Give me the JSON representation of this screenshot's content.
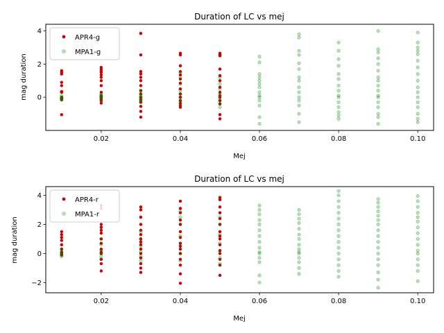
{
  "chart_data": [
    {
      "type": "scatter",
      "title": "Duration of LC vs mej",
      "xlabel": "Mej",
      "ylabel": "mag duration",
      "xlim": [
        0.006,
        0.104
      ],
      "ylim": [
        -2.0,
        4.4
      ],
      "xticks": [
        "0.02",
        "0.04",
        "0.06",
        "0.08",
        "0.10"
      ],
      "xtick_values": [
        0.02,
        0.04,
        0.06,
        0.08,
        0.1
      ],
      "yticks": [
        "0",
        "2",
        "4"
      ],
      "ytick_values": [
        0,
        2,
        4
      ],
      "legend_position": "top-left",
      "series": [
        {
          "name": "APR4-g",
          "color": "#cc0000",
          "x": [
            0.01,
            0.01,
            0.01,
            0.01,
            0.01,
            0.01,
            0.01,
            0.01,
            0.01,
            0.01,
            0.01,
            0.01,
            0.02,
            0.02,
            0.02,
            0.02,
            0.02,
            0.02,
            0.02,
            0.02,
            0.02,
            0.02,
            0.02,
            0.02,
            0.02,
            0.02,
            0.03,
            0.03,
            0.03,
            0.03,
            0.03,
            0.03,
            0.03,
            0.03,
            0.03,
            0.03,
            0.03,
            0.03,
            0.03,
            0.03,
            0.03,
            0.04,
            0.04,
            0.04,
            0.04,
            0.04,
            0.04,
            0.04,
            0.04,
            0.04,
            0.04,
            0.04,
            0.04,
            0.04,
            0.04,
            0.05,
            0.05,
            0.05,
            0.05,
            0.05,
            0.05,
            0.05,
            0.05,
            0.05,
            0.05,
            0.05,
            0.05,
            0.05,
            0.05
          ],
          "y": [
            1.6,
            1.5,
            1.4,
            0.9,
            0.7,
            0.35,
            0.3,
            0.0,
            -0.05,
            -0.1,
            -0.15,
            -1.05,
            1.8,
            1.7,
            1.6,
            1.5,
            1.35,
            1.2,
            1.0,
            0.7,
            0.3,
            0.1,
            0.0,
            -0.1,
            -0.2,
            -0.35,
            3.85,
            2.55,
            1.55,
            1.4,
            1.2,
            1.0,
            0.7,
            0.4,
            0.2,
            0.0,
            -0.15,
            -0.3,
            -0.55,
            -0.85,
            -1.2,
            2.65,
            2.55,
            1.9,
            1.55,
            1.35,
            1.1,
            0.85,
            0.5,
            0.2,
            0.0,
            -0.2,
            -0.35,
            -0.5,
            -0.6,
            2.65,
            2.55,
            2.5,
            1.7,
            1.3,
            1.0,
            0.6,
            0.3,
            0.1,
            0.0,
            -0.2,
            -0.4,
            -1.05,
            -1.3
          ]
        },
        {
          "name": "MPA1-g",
          "color": "#008000",
          "x": [
            0.01,
            0.01,
            0.01,
            0.01,
            0.01,
            0.02,
            0.02,
            0.02,
            0.02,
            0.02,
            0.02,
            0.03,
            0.03,
            0.03,
            0.03,
            0.03,
            0.03,
            0.03,
            0.04,
            0.04,
            0.04,
            0.04,
            0.04,
            0.04,
            0.04,
            0.04,
            0.05,
            0.05,
            0.05,
            0.05,
            0.05,
            0.05,
            0.05,
            0.05,
            0.06,
            0.06,
            0.06,
            0.06,
            0.06,
            0.06,
            0.06,
            0.06,
            0.06,
            0.06,
            0.06,
            0.06,
            0.06,
            0.06,
            0.07,
            0.07,
            0.07,
            0.07,
            0.07,
            0.07,
            0.07,
            0.07,
            0.07,
            0.07,
            0.07,
            0.07,
            0.07,
            0.07,
            0.07,
            0.08,
            0.08,
            0.08,
            0.08,
            0.08,
            0.08,
            0.08,
            0.08,
            0.08,
            0.08,
            0.08,
            0.08,
            0.08,
            0.08,
            0.08,
            0.09,
            0.09,
            0.09,
            0.09,
            0.09,
            0.09,
            0.09,
            0.09,
            0.09,
            0.09,
            0.09,
            0.09,
            0.09,
            0.09,
            0.09,
            0.09,
            0.09,
            0.1,
            0.1,
            0.1,
            0.1,
            0.1,
            0.1,
            0.1,
            0.1,
            0.1,
            0.1,
            0.1,
            0.1,
            0.1,
            0.1,
            0.1,
            0.1,
            0.1
          ],
          "y": [
            0.1,
            0.0,
            -0.05,
            -0.1,
            -0.15,
            0.2,
            0.1,
            0.0,
            -0.1,
            -0.2,
            0.05,
            0.4,
            0.2,
            0.1,
            0.0,
            -0.1,
            -0.2,
            -0.3,
            1.5,
            1.2,
            0.8,
            0.4,
            0.2,
            0.0,
            -0.2,
            -0.4,
            1.2,
            0.8,
            0.5,
            0.2,
            0.0,
            -0.2,
            -0.4,
            -0.6,
            2.45,
            2.1,
            1.4,
            1.2,
            1.0,
            0.8,
            0.6,
            0.3,
            0.1,
            0.0,
            -0.2,
            -0.5,
            -1.2,
            -1.6,
            3.8,
            3.6,
            2.8,
            2.55,
            2.05,
            1.7,
            1.2,
            1.0,
            0.6,
            0.3,
            0.0,
            -0.2,
            -0.5,
            -1.0,
            -1.5,
            3.3,
            2.8,
            2.3,
            1.9,
            1.4,
            1.1,
            0.7,
            0.4,
            0.1,
            0.0,
            -0.3,
            -0.6,
            -1.1,
            -1.3,
            -0.9,
            4.0,
            2.9,
            2.7,
            2.35,
            2.0,
            1.6,
            1.2,
            1.0,
            0.7,
            0.4,
            0.1,
            0.0,
            -0.3,
            -0.6,
            -1.0,
            -1.2,
            -1.6,
            3.9,
            3.3,
            3.0,
            2.8,
            2.6,
            2.2,
            1.8,
            1.4,
            1.0,
            0.6,
            0.3,
            0.0,
            -0.3,
            -0.6,
            -1.0,
            -1.3,
            -1.5
          ]
        }
      ]
    },
    {
      "type": "scatter",
      "title": "Duration of LC vs mej",
      "xlabel": "Mej",
      "ylabel": "mag duration",
      "xlim": [
        0.006,
        0.104
      ],
      "ylim": [
        -2.7,
        4.6
      ],
      "xticks": [
        "0.02",
        "0.04",
        "0.06",
        "0.08",
        "0.10"
      ],
      "xtick_values": [
        0.02,
        0.04,
        0.06,
        0.08,
        0.1
      ],
      "yticks": [
        "−2",
        "0",
        "2",
        "4"
      ],
      "ytick_values": [
        -2,
        0,
        2,
        4
      ],
      "legend_position": "top-left",
      "series": [
        {
          "name": "APR4-r",
          "color": "#cc0000",
          "x": [
            0.01,
            0.01,
            0.01,
            0.01,
            0.01,
            0.01,
            0.01,
            0.01,
            0.01,
            0.02,
            0.02,
            0.02,
            0.02,
            0.02,
            0.02,
            0.02,
            0.02,
            0.02,
            0.02,
            0.02,
            0.02,
            0.02,
            0.02,
            0.03,
            0.03,
            0.03,
            0.03,
            0.03,
            0.03,
            0.03,
            0.03,
            0.03,
            0.03,
            0.03,
            0.03,
            0.03,
            0.03,
            0.03,
            0.04,
            0.04,
            0.04,
            0.04,
            0.04,
            0.04,
            0.04,
            0.04,
            0.04,
            0.04,
            0.04,
            0.04,
            0.04,
            0.04,
            0.04,
            0.05,
            0.05,
            0.05,
            0.05,
            0.05,
            0.05,
            0.05,
            0.05,
            0.05,
            0.05,
            0.05,
            0.05,
            0.05,
            0.05,
            0.05
          ],
          "y": [
            1.5,
            1.3,
            1.1,
            0.9,
            0.6,
            0.3,
            0.1,
            0.0,
            -0.1,
            3.3,
            3.1,
            2.0,
            1.8,
            1.6,
            1.4,
            1.0,
            0.7,
            0.3,
            0.1,
            0.0,
            -0.4,
            -0.7,
            -1.2,
            3.2,
            3.0,
            2.5,
            2.0,
            1.6,
            1.3,
            1.0,
            0.6,
            0.3,
            0.0,
            -0.3,
            -0.7,
            -1.0,
            -1.3,
            0.8,
            3.6,
            3.1,
            2.8,
            2.3,
            2.0,
            1.5,
            1.1,
            0.7,
            0.3,
            0.0,
            -0.4,
            -0.8,
            -1.4,
            -2.05,
            0.5,
            3.85,
            3.7,
            3.2,
            2.8,
            2.4,
            2.0,
            1.5,
            1.0,
            0.6,
            0.2,
            0.0,
            -0.4,
            -0.8,
            -1.5,
            1.2
          ]
        },
        {
          "name": "MPA1-r",
          "color": "#008000",
          "x": [
            0.01,
            0.01,
            0.01,
            0.01,
            0.01,
            0.02,
            0.02,
            0.02,
            0.02,
            0.02,
            0.02,
            0.03,
            0.03,
            0.03,
            0.03,
            0.03,
            0.03,
            0.04,
            0.04,
            0.04,
            0.04,
            0.04,
            0.04,
            0.04,
            0.05,
            0.05,
            0.05,
            0.05,
            0.05,
            0.05,
            0.05,
            0.06,
            0.06,
            0.06,
            0.06,
            0.06,
            0.06,
            0.06,
            0.06,
            0.06,
            0.06,
            0.06,
            0.06,
            0.06,
            0.06,
            0.06,
            0.07,
            0.07,
            0.07,
            0.07,
            0.07,
            0.07,
            0.07,
            0.07,
            0.07,
            0.07,
            0.07,
            0.07,
            0.07,
            0.07,
            0.07,
            0.08,
            0.08,
            0.08,
            0.08,
            0.08,
            0.08,
            0.08,
            0.08,
            0.08,
            0.08,
            0.08,
            0.08,
            0.08,
            0.08,
            0.08,
            0.08,
            0.09,
            0.09,
            0.09,
            0.09,
            0.09,
            0.09,
            0.09,
            0.09,
            0.09,
            0.09,
            0.09,
            0.09,
            0.09,
            0.09,
            0.09,
            0.09,
            0.09,
            0.1,
            0.1,
            0.1,
            0.1,
            0.1,
            0.1,
            0.1,
            0.1,
            0.1,
            0.1,
            0.1,
            0.1,
            0.1,
            0.1,
            0.1,
            0.1
          ],
          "y": [
            0.3,
            0.1,
            0.0,
            -0.1,
            -0.2,
            1.0,
            0.6,
            0.2,
            0.0,
            -0.2,
            -0.4,
            1.5,
            1.0,
            0.5,
            0.1,
            -0.2,
            -0.5,
            2.9,
            2.5,
            2.0,
            1.2,
            0.6,
            0.0,
            -0.5,
            2.5,
            2.0,
            1.3,
            0.7,
            0.2,
            -0.3,
            -0.7,
            3.3,
            3.0,
            2.7,
            2.3,
            2.0,
            1.6,
            1.2,
            0.8,
            0.4,
            0.1,
            0.0,
            -0.3,
            -0.6,
            -1.5,
            -2.0,
            3.0,
            2.7,
            2.4,
            2.1,
            1.7,
            1.3,
            1.0,
            0.6,
            0.3,
            0.1,
            0.0,
            -0.3,
            -0.6,
            -1.0,
            -1.4,
            4.3,
            4.0,
            3.6,
            3.2,
            2.8,
            2.4,
            2.0,
            1.6,
            1.2,
            0.8,
            0.4,
            0.0,
            -0.4,
            -0.8,
            -1.2,
            -1.6,
            3.75,
            3.5,
            3.2,
            2.9,
            2.6,
            2.3,
            2.0,
            1.6,
            1.2,
            0.8,
            0.4,
            0.0,
            -0.4,
            -0.8,
            -1.3,
            -1.8,
            -2.35,
            3.95,
            3.6,
            3.2,
            2.8,
            2.5,
            2.2,
            1.8,
            1.4,
            1.0,
            0.6,
            0.2,
            0.0,
            -0.4,
            -0.8,
            -1.2,
            -1.9
          ]
        }
      ]
    }
  ]
}
